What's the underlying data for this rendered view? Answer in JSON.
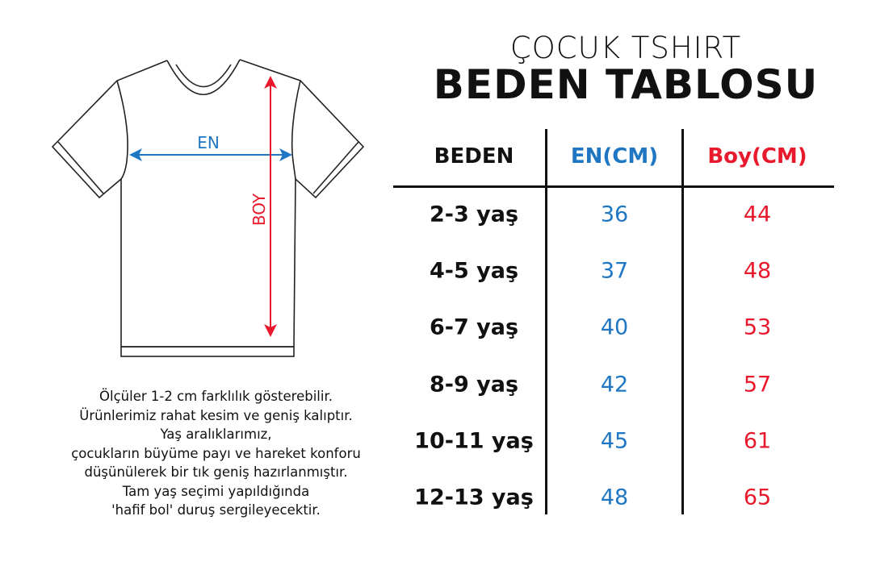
{
  "title_line1": "ÇOCUK TSHIRT",
  "title_line2": "BEDEN TABLOSU",
  "diagram": {
    "width_label": "EN",
    "length_label": "BOY"
  },
  "colors": {
    "en": "#1f76c2",
    "boy": "#e8192c",
    "text": "#111111"
  },
  "table": {
    "headers": [
      "BEDEN",
      "EN(CM)",
      "Boy(CM)"
    ],
    "rows": [
      {
        "size": "2-3 yaş",
        "en": "36",
        "boy": "44"
      },
      {
        "size": "4-5 yaş",
        "en": "37",
        "boy": "48"
      },
      {
        "size": "6-7 yaş",
        "en": "40",
        "boy": "53"
      },
      {
        "size": "8-9 yaş",
        "en": "42",
        "boy": "57"
      },
      {
        "size": "10-11 yaş",
        "en": "45",
        "boy": "61"
      },
      {
        "size": "12-13 yaş",
        "en": "48",
        "boy": "65"
      }
    ]
  },
  "notes": [
    "Ölçüler 1-2 cm farklılık gösterebilir.",
    "Ürünlerimiz rahat kesim ve geniş kalıptır.",
    "Yaş aralıklarımız,",
    "çocukların büyüme payı ve hareket konforu",
    "düşünülerek bir tık geniş hazırlanmıştır.",
    "Tam yaş seçimi yapıldığında",
    "'hafif bol' duruş sergileyecektir."
  ]
}
